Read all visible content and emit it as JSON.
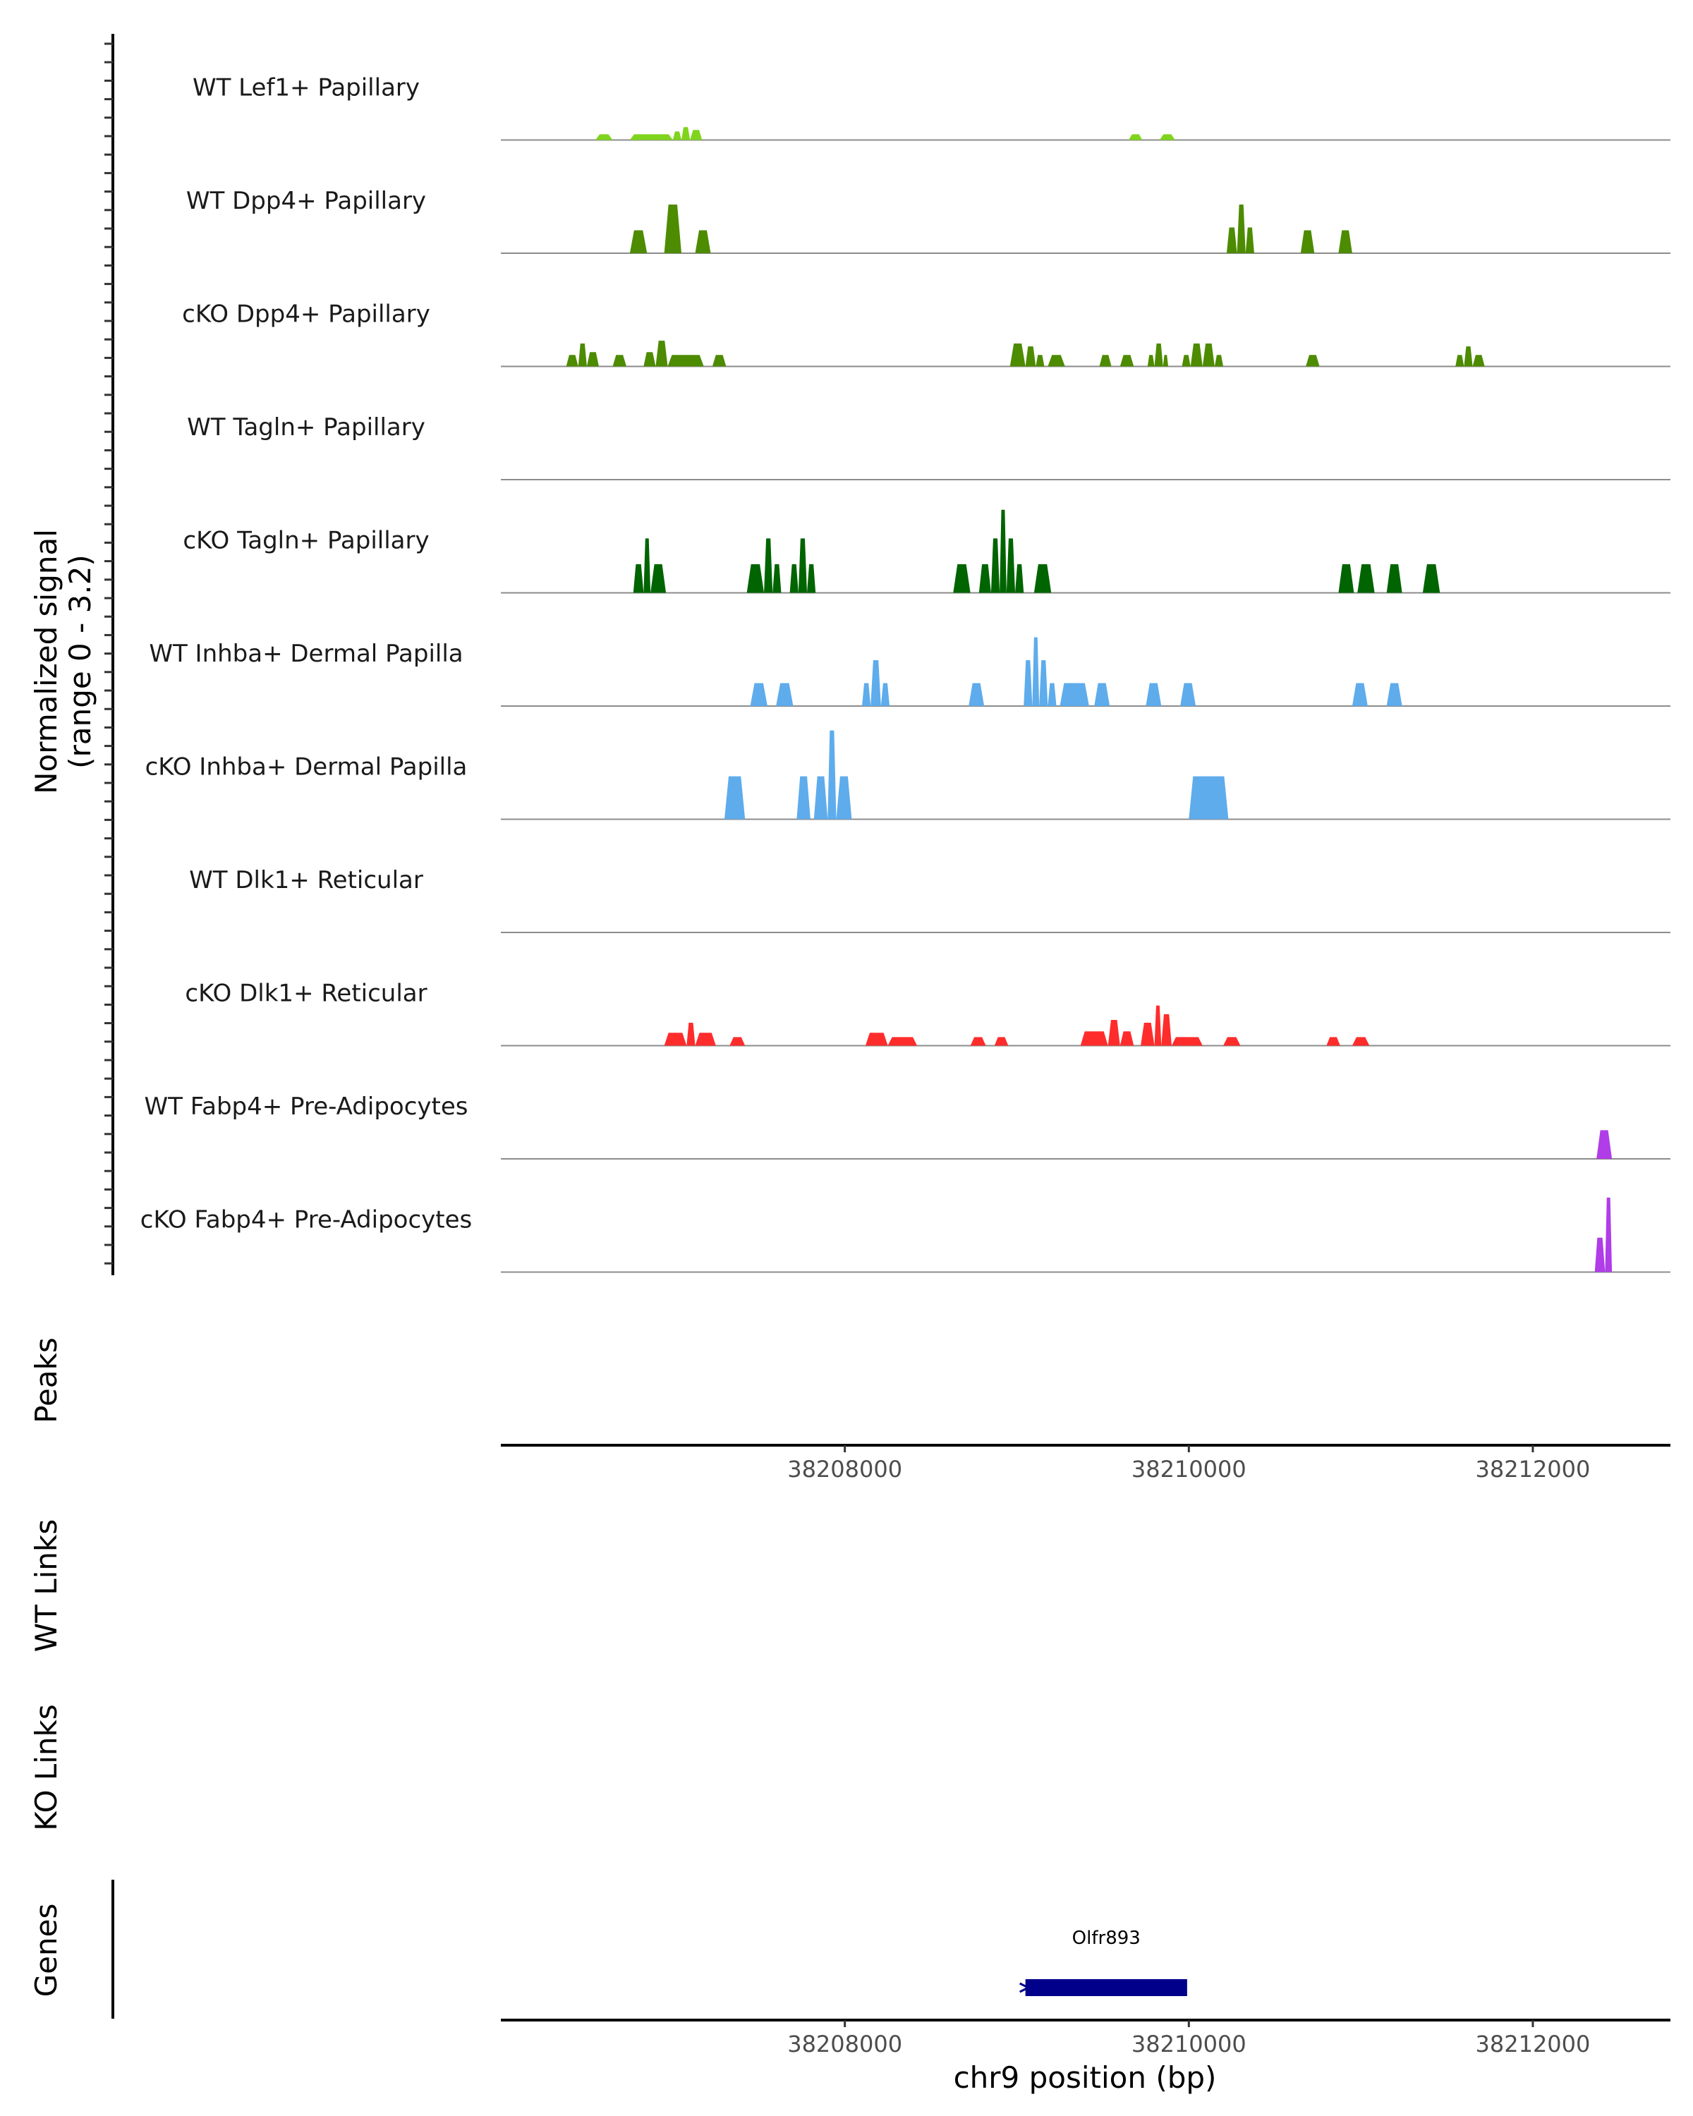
{
  "chart_data": {
    "type": "area",
    "chromosome": "chr9",
    "xrange": [
      38206000,
      38212800
    ],
    "ylabel": "Normalized signal",
    "ylabel_range": "(range 0 - 3.2)",
    "ylim": [
      0,
      3.2
    ],
    "xlabel": "chr9 position (bp)",
    "x_ticks": [
      38208000,
      38210000,
      38212000
    ],
    "x_tick_labels": [
      "38208000",
      "38210000",
      "38212000"
    ],
    "tracks": [
      {
        "name": "WT Lef1+ Papillary",
        "color": "#7fd41c",
        "peaks": [
          {
            "start": 38206550,
            "end": 38206650,
            "value": 0.2
          },
          {
            "start": 38206750,
            "end": 38207000,
            "value": 0.2
          },
          {
            "start": 38207000,
            "end": 38207050,
            "value": 0.3
          },
          {
            "start": 38207050,
            "end": 38207100,
            "value": 0.45
          },
          {
            "start": 38207100,
            "end": 38207170,
            "value": 0.35
          },
          {
            "start": 38209650,
            "end": 38209730,
            "value": 0.2
          },
          {
            "start": 38209830,
            "end": 38209920,
            "value": 0.2
          }
        ]
      },
      {
        "name": "WT Dpp4+ Papillary",
        "color": "#4d8b00",
        "peaks": [
          {
            "start": 38206750,
            "end": 38206850,
            "value": 0.8
          },
          {
            "start": 38206950,
            "end": 38207050,
            "value": 1.7
          },
          {
            "start": 38207130,
            "end": 38207220,
            "value": 0.8
          },
          {
            "start": 38210220,
            "end": 38210280,
            "value": 0.9
          },
          {
            "start": 38210280,
            "end": 38210330,
            "value": 1.7
          },
          {
            "start": 38210330,
            "end": 38210380,
            "value": 0.9
          },
          {
            "start": 38210650,
            "end": 38210730,
            "value": 0.8
          },
          {
            "start": 38210870,
            "end": 38210950,
            "value": 0.8
          }
        ]
      },
      {
        "name": "cKO Dpp4+ Papillary",
        "color": "#4d8b00",
        "peaks": [
          {
            "start": 38206380,
            "end": 38206450,
            "value": 0.4
          },
          {
            "start": 38206450,
            "end": 38206500,
            "value": 0.8
          },
          {
            "start": 38206500,
            "end": 38206570,
            "value": 0.5
          },
          {
            "start": 38206650,
            "end": 38206730,
            "value": 0.4
          },
          {
            "start": 38206830,
            "end": 38206900,
            "value": 0.5
          },
          {
            "start": 38206900,
            "end": 38206970,
            "value": 0.9
          },
          {
            "start": 38206970,
            "end": 38207180,
            "value": 0.4
          },
          {
            "start": 38207230,
            "end": 38207310,
            "value": 0.4
          },
          {
            "start": 38208960,
            "end": 38209050,
            "value": 0.8
          },
          {
            "start": 38209050,
            "end": 38209110,
            "value": 0.7
          },
          {
            "start": 38209110,
            "end": 38209160,
            "value": 0.4
          },
          {
            "start": 38209180,
            "end": 38209280,
            "value": 0.4
          },
          {
            "start": 38209480,
            "end": 38209550,
            "value": 0.4
          },
          {
            "start": 38209600,
            "end": 38209680,
            "value": 0.4
          },
          {
            "start": 38209760,
            "end": 38209800,
            "value": 0.4
          },
          {
            "start": 38209800,
            "end": 38209850,
            "value": 0.8
          },
          {
            "start": 38209850,
            "end": 38209880,
            "value": 0.4
          },
          {
            "start": 38209960,
            "end": 38210010,
            "value": 0.4
          },
          {
            "start": 38210010,
            "end": 38210080,
            "value": 0.8
          },
          {
            "start": 38210080,
            "end": 38210150,
            "value": 0.8
          },
          {
            "start": 38210150,
            "end": 38210200,
            "value": 0.4
          },
          {
            "start": 38210680,
            "end": 38210760,
            "value": 0.4
          },
          {
            "start": 38211550,
            "end": 38211600,
            "value": 0.4
          },
          {
            "start": 38211600,
            "end": 38211650,
            "value": 0.7
          },
          {
            "start": 38211650,
            "end": 38211720,
            "value": 0.4
          }
        ]
      },
      {
        "name": "WT Tagln+ Papillary",
        "color": "#006400",
        "peaks": []
      },
      {
        "name": "cKO Tagln+ Papillary",
        "color": "#006400",
        "peaks": [
          {
            "start": 38206770,
            "end": 38206830,
            "value": 1.0
          },
          {
            "start": 38206830,
            "end": 38206870,
            "value": 1.9
          },
          {
            "start": 38206870,
            "end": 38206960,
            "value": 1.0
          },
          {
            "start": 38207430,
            "end": 38207530,
            "value": 1.0
          },
          {
            "start": 38207530,
            "end": 38207580,
            "value": 1.9
          },
          {
            "start": 38207580,
            "end": 38207630,
            "value": 1.0
          },
          {
            "start": 38207680,
            "end": 38207730,
            "value": 1.0
          },
          {
            "start": 38207730,
            "end": 38207780,
            "value": 1.9
          },
          {
            "start": 38207780,
            "end": 38207830,
            "value": 1.0
          },
          {
            "start": 38208630,
            "end": 38208730,
            "value": 1.0
          },
          {
            "start": 38208780,
            "end": 38208850,
            "value": 1.0
          },
          {
            "start": 38208850,
            "end": 38208900,
            "value": 1.9
          },
          {
            "start": 38208900,
            "end": 38208940,
            "value": 2.9
          },
          {
            "start": 38208940,
            "end": 38208990,
            "value": 1.9
          },
          {
            "start": 38208990,
            "end": 38209040,
            "value": 1.0
          },
          {
            "start": 38209100,
            "end": 38209200,
            "value": 1.0
          },
          {
            "start": 38210870,
            "end": 38210960,
            "value": 1.0
          },
          {
            "start": 38210980,
            "end": 38211080,
            "value": 1.0
          },
          {
            "start": 38211150,
            "end": 38211240,
            "value": 1.0
          },
          {
            "start": 38211360,
            "end": 38211460,
            "value": 1.0
          }
        ]
      },
      {
        "name": "WT Inhba+ Dermal Papilla",
        "color": "#5eacec",
        "peaks": [
          {
            "start": 38207450,
            "end": 38207550,
            "value": 0.8
          },
          {
            "start": 38207600,
            "end": 38207700,
            "value": 0.8
          },
          {
            "start": 38208100,
            "end": 38208150,
            "value": 0.8
          },
          {
            "start": 38208150,
            "end": 38208210,
            "value": 1.6
          },
          {
            "start": 38208210,
            "end": 38208260,
            "value": 0.8
          },
          {
            "start": 38208720,
            "end": 38208810,
            "value": 0.8
          },
          {
            "start": 38209040,
            "end": 38209090,
            "value": 1.6
          },
          {
            "start": 38209090,
            "end": 38209130,
            "value": 2.4
          },
          {
            "start": 38209130,
            "end": 38209180,
            "value": 1.6
          },
          {
            "start": 38209180,
            "end": 38209230,
            "value": 0.8
          },
          {
            "start": 38209250,
            "end": 38209420,
            "value": 0.8
          },
          {
            "start": 38209450,
            "end": 38209540,
            "value": 0.8
          },
          {
            "start": 38209750,
            "end": 38209840,
            "value": 0.8
          },
          {
            "start": 38209950,
            "end": 38210040,
            "value": 0.8
          },
          {
            "start": 38210950,
            "end": 38211040,
            "value": 0.8
          },
          {
            "start": 38211150,
            "end": 38211240,
            "value": 0.8
          }
        ]
      },
      {
        "name": "cKO Inhba+ Dermal Papilla",
        "color": "#5eacec",
        "peaks": [
          {
            "start": 38207300,
            "end": 38207420,
            "value": 1.5
          },
          {
            "start": 38207720,
            "end": 38207800,
            "value": 1.5
          },
          {
            "start": 38207820,
            "end": 38207900,
            "value": 1.5
          },
          {
            "start": 38207900,
            "end": 38207950,
            "value": 3.1
          },
          {
            "start": 38207950,
            "end": 38208040,
            "value": 1.5
          },
          {
            "start": 38210000,
            "end": 38210230,
            "value": 1.5
          }
        ]
      },
      {
        "name": "WT Dlk1+ Reticular",
        "color": "#ff2c2c",
        "peaks": []
      },
      {
        "name": "cKO Dlk1+ Reticular",
        "color": "#ff2c2c",
        "peaks": [
          {
            "start": 38206950,
            "end": 38207080,
            "value": 0.45
          },
          {
            "start": 38207080,
            "end": 38207130,
            "value": 0.8
          },
          {
            "start": 38207130,
            "end": 38207250,
            "value": 0.45
          },
          {
            "start": 38207330,
            "end": 38207420,
            "value": 0.3
          },
          {
            "start": 38208120,
            "end": 38208250,
            "value": 0.45
          },
          {
            "start": 38208250,
            "end": 38208420,
            "value": 0.3
          },
          {
            "start": 38208730,
            "end": 38208820,
            "value": 0.3
          },
          {
            "start": 38208870,
            "end": 38208950,
            "value": 0.3
          },
          {
            "start": 38209370,
            "end": 38209530,
            "value": 0.5
          },
          {
            "start": 38209530,
            "end": 38209600,
            "value": 0.9
          },
          {
            "start": 38209600,
            "end": 38209680,
            "value": 0.5
          },
          {
            "start": 38209720,
            "end": 38209800,
            "value": 0.8
          },
          {
            "start": 38209800,
            "end": 38209840,
            "value": 1.4
          },
          {
            "start": 38209840,
            "end": 38209900,
            "value": 1.1
          },
          {
            "start": 38209900,
            "end": 38210080,
            "value": 0.3
          },
          {
            "start": 38210200,
            "end": 38210300,
            "value": 0.3
          },
          {
            "start": 38210800,
            "end": 38210880,
            "value": 0.3
          },
          {
            "start": 38210950,
            "end": 38211050,
            "value": 0.3
          }
        ]
      },
      {
        "name": "WT Fabp4+ Pre-Adipocytes",
        "color": "#b03de8",
        "peaks": [
          {
            "start": 38212370,
            "end": 38212460,
            "value": 1.0
          }
        ]
      },
      {
        "name": "cKO Fabp4+ Pre-Adipocytes",
        "color": "#b03de8",
        "peaks": [
          {
            "start": 38212360,
            "end": 38212420,
            "value": 1.2
          },
          {
            "start": 38212420,
            "end": 38212460,
            "value": 2.6
          }
        ]
      }
    ],
    "side_panels": [
      "Peaks",
      "WT Links",
      "KO Links",
      "Genes"
    ],
    "genes": [
      {
        "name": "Olfr893",
        "start": 38209050,
        "end": 38209990,
        "color": "#00008b",
        "strand": "-"
      }
    ]
  }
}
